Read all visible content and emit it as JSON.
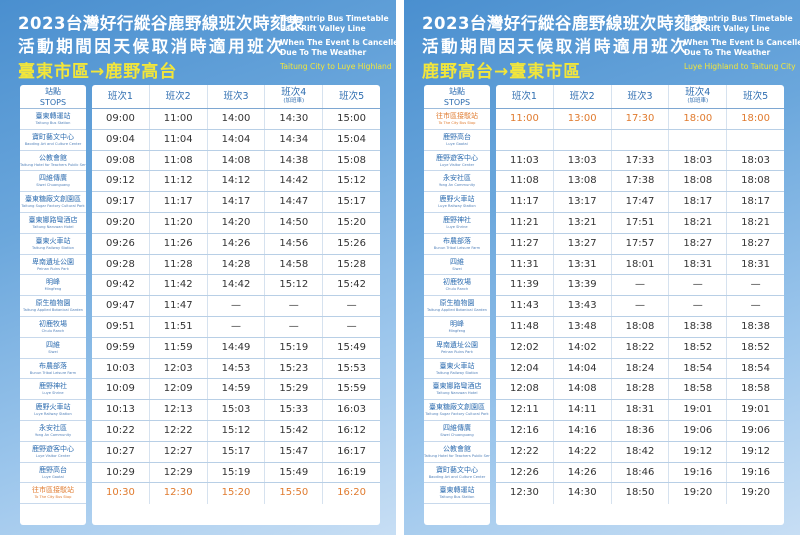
{
  "panels": [
    {
      "title_line1": "2023台灣好行縱谷鹿野線班次時刻表",
      "title_line2": "活動期間因天候取消時適用班次",
      "route": "臺東市區→鹿野高台",
      "en_line1a": "Taiwantrip Bus Timetable",
      "en_line1b": "East Rift Valley Line",
      "en_line2a": "When The Event Is Cancelled",
      "en_line2b": "Due To The Weather",
      "en_route": "Taitung City to Luye Highland",
      "stops_header_zh": "站點",
      "stops_header_en": "STOPS",
      "columns": [
        {
          "label": "班次1",
          "sub": ""
        },
        {
          "label": "班次2",
          "sub": ""
        },
        {
          "label": "班次3",
          "sub": ""
        },
        {
          "label": "班次4",
          "sub": "(加班車)"
        },
        {
          "label": "班次5",
          "sub": ""
        }
      ],
      "stops": [
        {
          "zh": "臺東轉運站",
          "en": "Taitung Bus Station",
          "highlight": false
        },
        {
          "zh": "寶町藝文中心",
          "en": "Baoding Art and Culture Center",
          "highlight": false
        },
        {
          "zh": "公教會館",
          "en": "Taitung Hotel for Teachers Public Servants",
          "highlight": false
        },
        {
          "zh": "四維傳廣",
          "en": "Siwei Chuanguang",
          "highlight": false
        },
        {
          "zh": "臺東糖廠文創園區",
          "en": "Taitung Sugar Factory Cultural Park",
          "highlight": false
        },
        {
          "zh": "臺東娜路彎酒店",
          "en": "Taitung Naruwan Hotel",
          "highlight": false
        },
        {
          "zh": "臺東火車站",
          "en": "Taitung Railway Station",
          "highlight": false
        },
        {
          "zh": "卑南遺址公園",
          "en": "Peinan Ruins Park",
          "highlight": false
        },
        {
          "zh": "明峰",
          "en": "Mingfeng",
          "highlight": false
        },
        {
          "zh": "原生植物園",
          "en": "Taitung Applied Botanical Garden",
          "highlight": false
        },
        {
          "zh": "初鹿牧場",
          "en": "Chulu Ranch",
          "highlight": false
        },
        {
          "zh": "四維",
          "en": "Siwei",
          "highlight": false
        },
        {
          "zh": "布農部落",
          "en": "Bunun Tribal Leisure Farm",
          "highlight": false
        },
        {
          "zh": "鹿野神社",
          "en": "Luye Shrine",
          "highlight": false
        },
        {
          "zh": "鹿野火車站",
          "en": "Luye Railway Station",
          "highlight": false
        },
        {
          "zh": "永安社區",
          "en": "Yong An Community",
          "highlight": false
        },
        {
          "zh": "鹿野遊客中心",
          "en": "Luye Visitor Center",
          "highlight": false
        },
        {
          "zh": "鹿野高台",
          "en": "Luye Gaotai",
          "highlight": false
        },
        {
          "zh": "往市區接駁站",
          "en": "To The City Bus Stop",
          "highlight": true
        }
      ],
      "rows": [
        [
          "09:00",
          "11:00",
          "14:00",
          "14:30",
          "15:00"
        ],
        [
          "09:04",
          "11:04",
          "14:04",
          "14:34",
          "15:04"
        ],
        [
          "09:08",
          "11:08",
          "14:08",
          "14:38",
          "15:08"
        ],
        [
          "09:12",
          "11:12",
          "14:12",
          "14:42",
          "15:12"
        ],
        [
          "09:17",
          "11:17",
          "14:17",
          "14:47",
          "15:17"
        ],
        [
          "09:20",
          "11:20",
          "14:20",
          "14:50",
          "15:20"
        ],
        [
          "09:26",
          "11:26",
          "14:26",
          "14:56",
          "15:26"
        ],
        [
          "09:28",
          "11:28",
          "14:28",
          "14:58",
          "15:28"
        ],
        [
          "09:42",
          "11:42",
          "14:42",
          "15:12",
          "15:42"
        ],
        [
          "09:47",
          "11:47",
          "—",
          "—",
          "—"
        ],
        [
          "09:51",
          "11:51",
          "—",
          "—",
          "—"
        ],
        [
          "09:59",
          "11:59",
          "14:49",
          "15:19",
          "15:49"
        ],
        [
          "10:03",
          "12:03",
          "14:53",
          "15:23",
          "15:53"
        ],
        [
          "10:09",
          "12:09",
          "14:59",
          "15:29",
          "15:59"
        ],
        [
          "10:13",
          "12:13",
          "15:03",
          "15:33",
          "16:03"
        ],
        [
          "10:22",
          "12:22",
          "15:12",
          "15:42",
          "16:12"
        ],
        [
          "10:27",
          "12:27",
          "15:17",
          "15:47",
          "16:17"
        ],
        [
          "10:29",
          "12:29",
          "15:19",
          "15:49",
          "16:19"
        ],
        [
          "10:30",
          "12:30",
          "15:20",
          "15:50",
          "16:20"
        ]
      ]
    },
    {
      "title_line1": "2023台灣好行縱谷鹿野線班次時刻表",
      "title_line2": "活動期間因天候取消時適用班次",
      "route": "鹿野高台→臺東市區",
      "en_line1a": "Taiwantrip Bus Timetable",
      "en_line1b": "East Rift Valley Line",
      "en_line2a": "When The Event Is Cancelled",
      "en_line2b": "Due To The Weather",
      "en_route": "Luye Highland to Taitung City",
      "stops_header_zh": "站點",
      "stops_header_en": "STOPS",
      "columns": [
        {
          "label": "班次1",
          "sub": ""
        },
        {
          "label": "班次2",
          "sub": ""
        },
        {
          "label": "班次3",
          "sub": ""
        },
        {
          "label": "班次4",
          "sub": "(加班車)"
        },
        {
          "label": "班次5",
          "sub": ""
        }
      ],
      "stops": [
        {
          "zh": "往市區接駁站",
          "en": "To The City Bus Stop",
          "highlight": true
        },
        {
          "zh": "鹿野高台",
          "en": "Luye Gaotai",
          "highlight": false
        },
        {
          "zh": "鹿野遊客中心",
          "en": "Luye Visitor Center",
          "highlight": false
        },
        {
          "zh": "永安社區",
          "en": "Yong An Community",
          "highlight": false
        },
        {
          "zh": "鹿野火車站",
          "en": "Luye Railway Station",
          "highlight": false
        },
        {
          "zh": "鹿野神社",
          "en": "Luye Shrine",
          "highlight": false
        },
        {
          "zh": "布農部落",
          "en": "Bunun Tribal Leisure Farm",
          "highlight": false
        },
        {
          "zh": "四維",
          "en": "Siwei",
          "highlight": false
        },
        {
          "zh": "初鹿牧場",
          "en": "Chulu Ranch",
          "highlight": false
        },
        {
          "zh": "原生植物園",
          "en": "Taitung Applied Botanical Garden",
          "highlight": false
        },
        {
          "zh": "明峰",
          "en": "Mingfeng",
          "highlight": false
        },
        {
          "zh": "卑南遺址公園",
          "en": "Peinan Ruins Park",
          "highlight": false
        },
        {
          "zh": "臺東火車站",
          "en": "Taitung Railway Station",
          "highlight": false
        },
        {
          "zh": "臺東娜路彎酒店",
          "en": "Taitung Naruwan Hotel",
          "highlight": false
        },
        {
          "zh": "臺東糖廠文創園區",
          "en": "Taitung Sugar Factory Cultural Park",
          "highlight": false
        },
        {
          "zh": "四維傳廣",
          "en": "Siwei Chuanguang",
          "highlight": false
        },
        {
          "zh": "公教會館",
          "en": "Taitung Hotel for Teachers Public Servants",
          "highlight": false
        },
        {
          "zh": "寶町藝文中心",
          "en": "Baoding Art and Culture Center",
          "highlight": false
        },
        {
          "zh": "臺東轉運站",
          "en": "Taitung Bus Station",
          "highlight": false
        }
      ],
      "rows": [
        [
          "11:00",
          "13:00",
          "17:30",
          "18:00",
          "18:00"
        ],
        [
          "",
          "",
          "",
          "",
          ""
        ],
        [
          "11:03",
          "13:03",
          "17:33",
          "18:03",
          "18:03"
        ],
        [
          "11:08",
          "13:08",
          "17:38",
          "18:08",
          "18:08"
        ],
        [
          "11:17",
          "13:17",
          "17:47",
          "18:17",
          "18:17"
        ],
        [
          "11:21",
          "13:21",
          "17:51",
          "18:21",
          "18:21"
        ],
        [
          "11:27",
          "13:27",
          "17:57",
          "18:27",
          "18:27"
        ],
        [
          "11:31",
          "13:31",
          "18:01",
          "18:31",
          "18:31"
        ],
        [
          "11:39",
          "13:39",
          "—",
          "—",
          "—"
        ],
        [
          "11:43",
          "13:43",
          "—",
          "—",
          "—"
        ],
        [
          "11:48",
          "13:48",
          "18:08",
          "18:38",
          "18:38"
        ],
        [
          "12:02",
          "14:02",
          "18:22",
          "18:52",
          "18:52"
        ],
        [
          "12:04",
          "14:04",
          "18:24",
          "18:54",
          "18:54"
        ],
        [
          "12:08",
          "14:08",
          "18:28",
          "18:58",
          "18:58"
        ],
        [
          "12:11",
          "14:11",
          "18:31",
          "19:01",
          "19:01"
        ],
        [
          "12:16",
          "14:16",
          "18:36",
          "19:06",
          "19:06"
        ],
        [
          "12:22",
          "14:22",
          "18:42",
          "19:12",
          "19:12"
        ],
        [
          "12:26",
          "14:26",
          "18:46",
          "19:16",
          "19:16"
        ],
        [
          "12:30",
          "14:30",
          "18:50",
          "19:20",
          "19:20"
        ]
      ]
    }
  ]
}
